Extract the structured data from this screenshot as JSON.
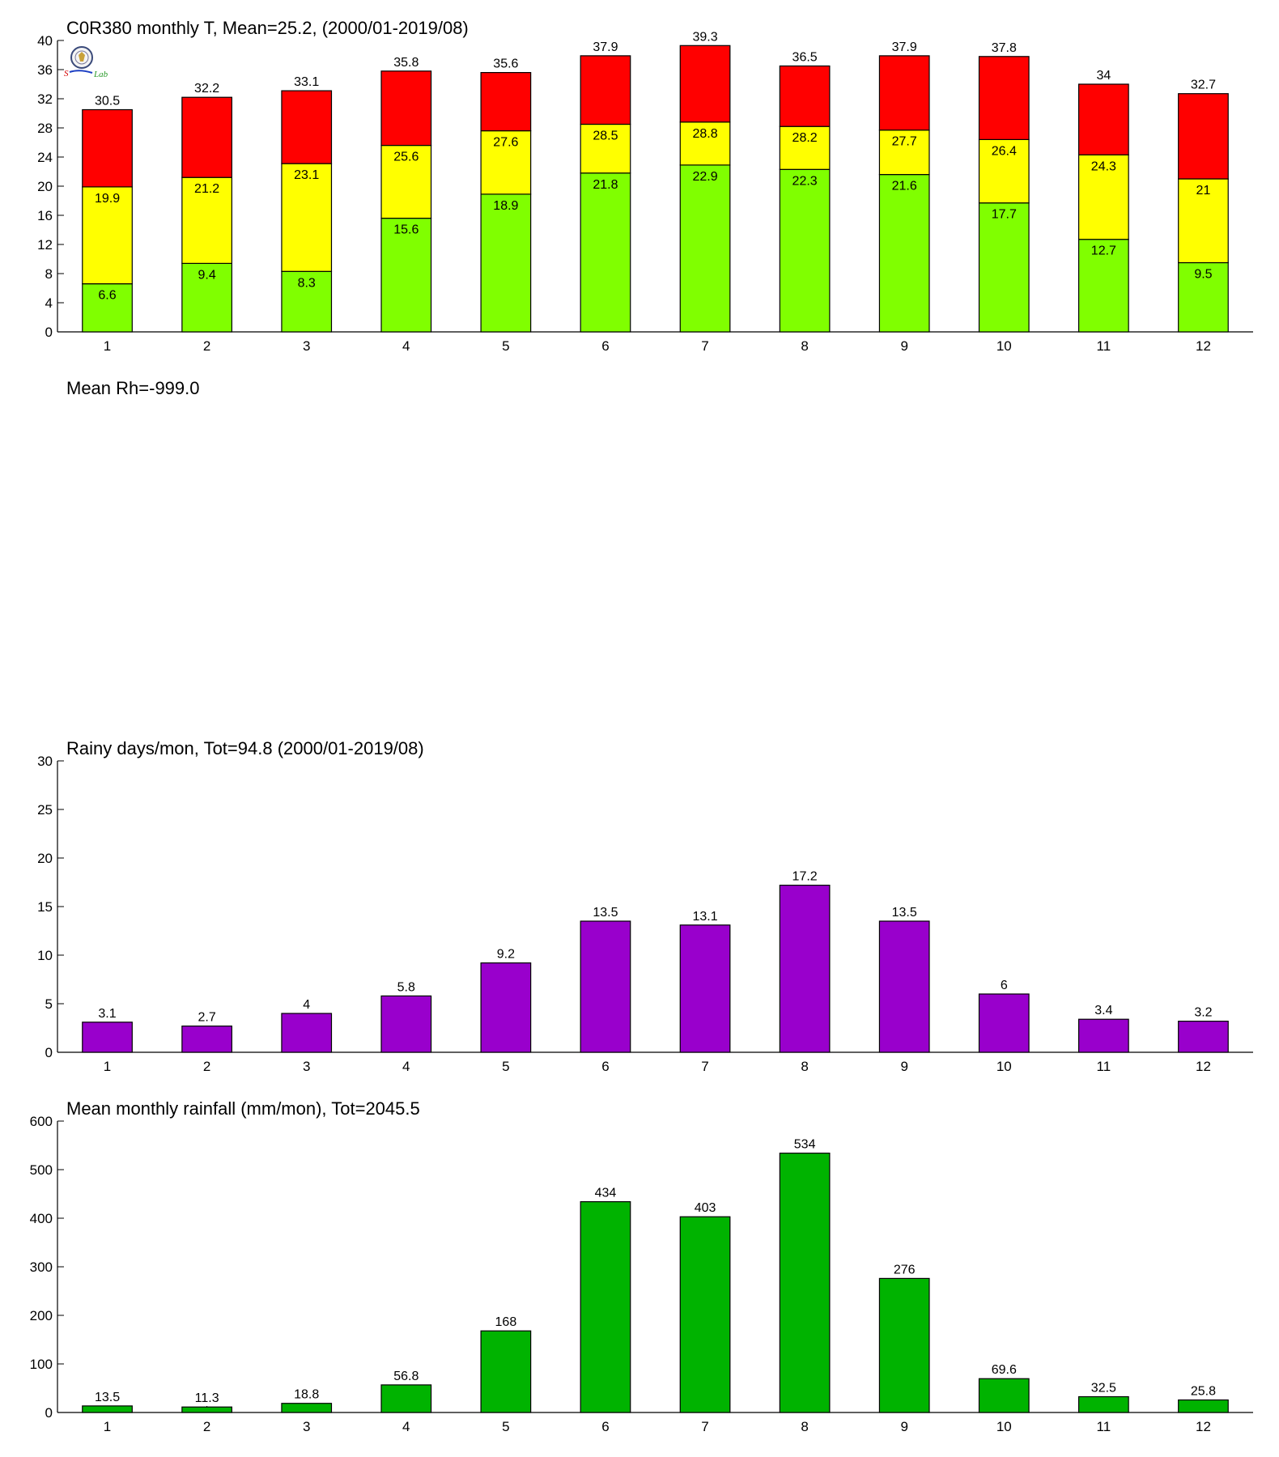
{
  "colors": {
    "max": "#ff0000",
    "mean": "#ffff00",
    "min": "#80ff00",
    "rainy_days": "#9900cc",
    "rainfall": "#00b300",
    "axis": "#000000"
  },
  "logo": {
    "icon": "weather-lab-seal-logo",
    "text": "Lab"
  },
  "chart_data": [
    {
      "id": "temperature",
      "type": "bar",
      "stacked_ranges": true,
      "title": "C0R380 monthly T, Mean=25.2, (2000/01-2019/08)",
      "categories": [
        "1",
        "2",
        "3",
        "4",
        "5",
        "6",
        "7",
        "8",
        "9",
        "10",
        "11",
        "12"
      ],
      "ylim": [
        0,
        40
      ],
      "yticks": [
        0,
        4,
        8,
        12,
        16,
        20,
        24,
        28,
        32,
        36,
        40
      ],
      "series": [
        {
          "key": "min",
          "values": [
            6.6,
            9.4,
            8.3,
            15.6,
            18.9,
            21.8,
            22.9,
            22.3,
            21.6,
            17.7,
            12.7,
            9.5
          ]
        },
        {
          "key": "mean",
          "values": [
            19.9,
            21.2,
            23.1,
            25.6,
            27.6,
            28.5,
            28.8,
            28.2,
            27.7,
            26.4,
            24.3,
            21
          ]
        },
        {
          "key": "max",
          "values": [
            30.5,
            32.2,
            33.1,
            35.8,
            35.6,
            37.9,
            39.3,
            36.5,
            37.9,
            37.8,
            34,
            32.7
          ]
        }
      ],
      "grid": false
    },
    {
      "id": "humidity",
      "type": "bar",
      "title": "Mean Rh=-999.0",
      "empty": true
    },
    {
      "id": "rainy_days",
      "type": "bar",
      "title": "Rainy days/mon, Tot=94.8 (2000/01-2019/08)",
      "categories": [
        "1",
        "2",
        "3",
        "4",
        "5",
        "6",
        "7",
        "8",
        "9",
        "10",
        "11",
        "12"
      ],
      "ylim": [
        0,
        30
      ],
      "yticks": [
        0,
        5,
        10,
        15,
        20,
        25,
        30
      ],
      "values": [
        3.1,
        2.7,
        4,
        5.8,
        9.2,
        13.5,
        13.1,
        17.2,
        13.5,
        6,
        3.4,
        3.2
      ],
      "grid": false
    },
    {
      "id": "rainfall",
      "type": "bar",
      "title": "Mean monthly rainfall (mm/mon), Tot=2045.5",
      "categories": [
        "1",
        "2",
        "3",
        "4",
        "5",
        "6",
        "7",
        "8",
        "9",
        "10",
        "11",
        "12"
      ],
      "ylim": [
        0,
        600
      ],
      "yticks": [
        0,
        100,
        200,
        300,
        400,
        500,
        600
      ],
      "values": [
        13.5,
        11.3,
        18.8,
        56.8,
        168,
        434,
        403,
        534,
        276,
        69.6,
        32.5,
        25.8
      ],
      "grid": false
    }
  ]
}
